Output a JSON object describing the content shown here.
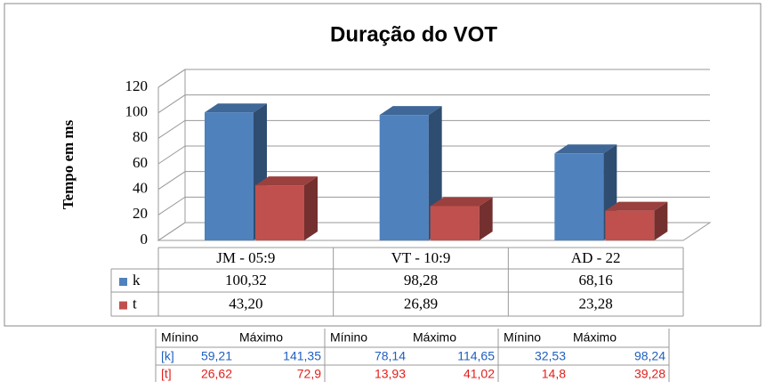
{
  "chart_data": {
    "type": "bar3d",
    "title": "Duração do VOT",
    "y_label": "Tempo em ms",
    "categories": [
      "JM - 05:9",
      "VT - 10:9",
      "AD - 22"
    ],
    "series": [
      {
        "name": "k",
        "color": "#4f81bd",
        "values": [
          100.32,
          98.28,
          68.16
        ],
        "value_labels": [
          "100,32",
          "98,28",
          "68,16"
        ]
      },
      {
        "name": "t",
        "color": "#c0504d",
        "values": [
          43.2,
          26.89,
          23.28
        ],
        "value_labels": [
          "43,20",
          "26,89",
          "23,28"
        ]
      }
    ],
    "ylim": [
      0,
      120
    ],
    "yticks": [
      0,
      20,
      40,
      60,
      80,
      100,
      120
    ],
    "grid": true
  },
  "table": {
    "header": [
      "Mínino",
      "Máximo",
      "Mínino",
      "Máximo",
      "Mínino",
      "Máximo"
    ],
    "rows": [
      [
        "[k]",
        "59,21",
        "141,35",
        "78,14",
        "114,65",
        "32,53",
        "98,24"
      ],
      [
        "[t]",
        "26,62",
        "72,9",
        "13,93",
        "41,02",
        "14,8",
        "39,28"
      ]
    ]
  }
}
